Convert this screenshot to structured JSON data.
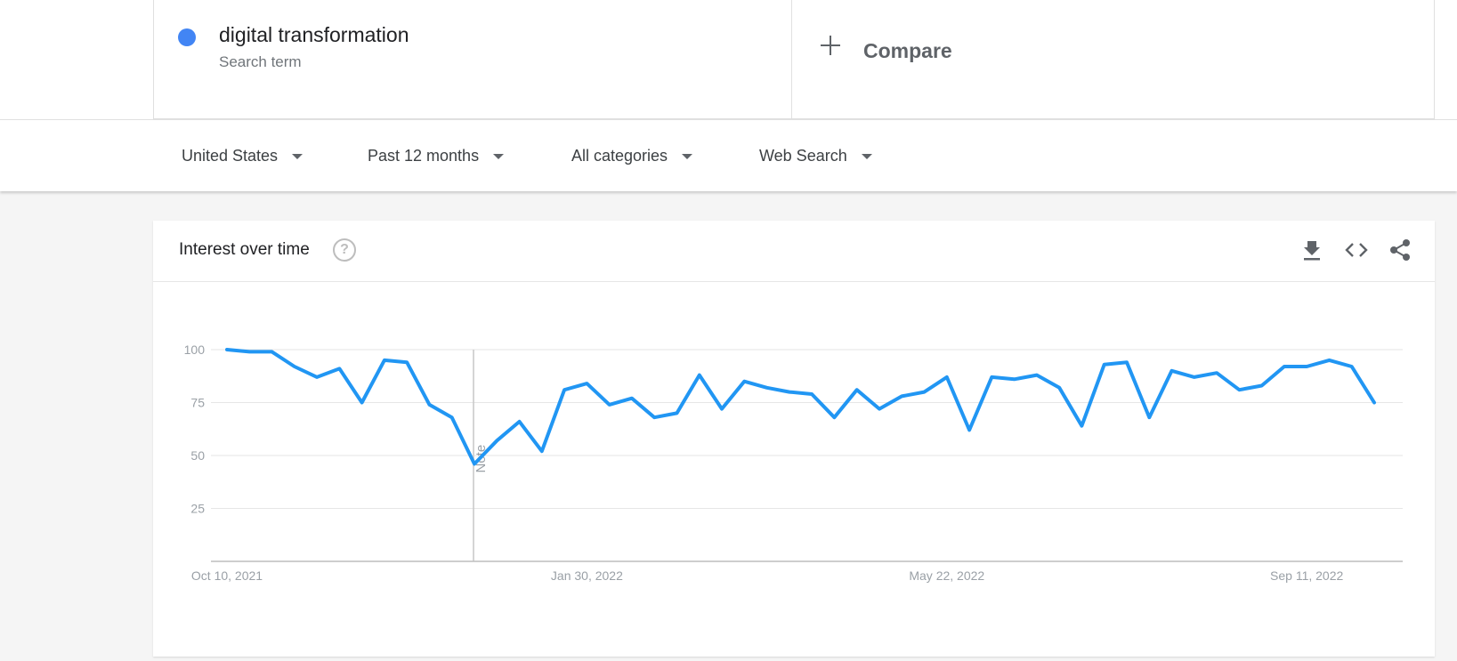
{
  "search_term": {
    "name": "digital transformation",
    "subtitle": "Search term",
    "dot_color": "#4285f4"
  },
  "compare": {
    "label": "Compare",
    "icon": "plus-icon"
  },
  "filters": {
    "region": "United States",
    "time_range": "Past 12 months",
    "category": "All categories",
    "search_type": "Web Search"
  },
  "card": {
    "title": "Interest over time",
    "help_icon": "question-circle-icon",
    "actions": [
      "download-icon",
      "embed-code-icon",
      "share-icon"
    ]
  },
  "chart_data": {
    "type": "line",
    "x_ticks": [
      "Oct 10, 2021",
      "Jan 30, 2022",
      "May 22, 2022",
      "Sep 11, 2022"
    ],
    "y_ticks": [
      25,
      50,
      75,
      100
    ],
    "ylim": [
      0,
      100
    ],
    "grid": true,
    "line_color": "#2196f3",
    "annotation": "Note",
    "series": [
      {
        "values": [
          100,
          99,
          99,
          92,
          87,
          91,
          75,
          95,
          94,
          74,
          68,
          46,
          57,
          66,
          52,
          81,
          84,
          74,
          77,
          68,
          70,
          88,
          72,
          85,
          82,
          80,
          79,
          68,
          81,
          72,
          78,
          80,
          87,
          62,
          87,
          86,
          88,
          82,
          64,
          93,
          94,
          68,
          90,
          87,
          89,
          81,
          83,
          92,
          92,
          95,
          92,
          75
        ]
      }
    ]
  }
}
